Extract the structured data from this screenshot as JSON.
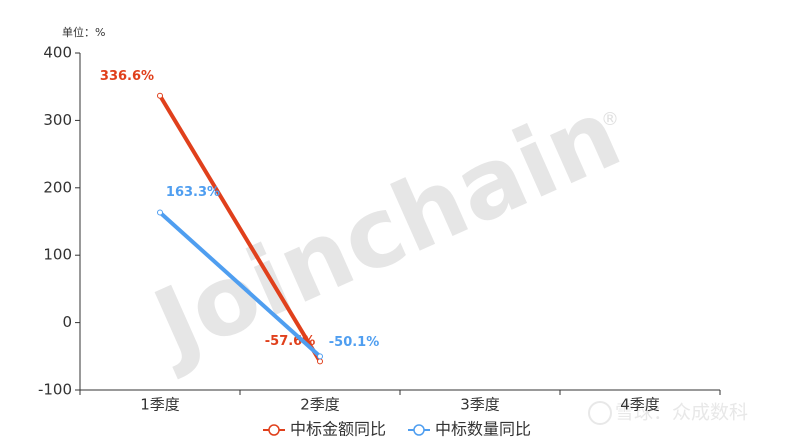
{
  "chart_data": {
    "type": "line",
    "unit_label": "单位：%",
    "categories": [
      "1季度",
      "2季度",
      "3季度",
      "4季度"
    ],
    "ylim": [
      -100,
      400
    ],
    "yticks": [
      -100,
      0,
      100,
      200,
      300,
      400
    ],
    "series": [
      {
        "name": "中标金额同比",
        "color": "#e0401c",
        "values": [
          336.6,
          -57.6,
          null,
          null
        ],
        "value_labels": [
          "336.6%",
          "-57.6%",
          null,
          null
        ]
      },
      {
        "name": "中标数量同比",
        "color": "#4f9ef0",
        "values": [
          163.3,
          -50.1,
          null,
          null
        ],
        "value_labels": [
          "163.3%",
          "-50.1%",
          null,
          null
        ]
      }
    ],
    "watermark": "Joinchain",
    "watermark_mark": "®",
    "source_watermark": "雪球：众成数科"
  }
}
